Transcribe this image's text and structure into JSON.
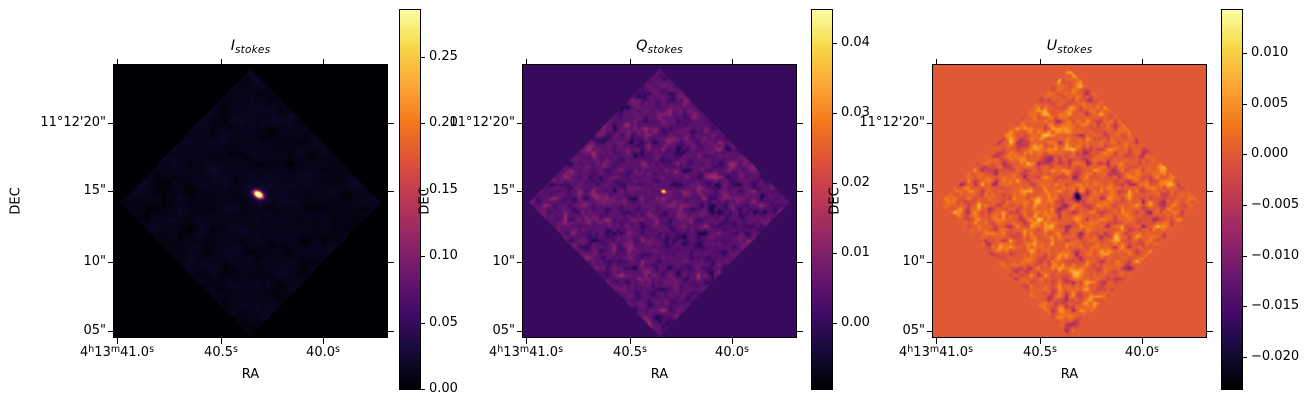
{
  "figure": {
    "background": "#ffffff",
    "kind": "stokes-parameter-maps"
  },
  "colormap": {
    "name": "inferno",
    "stops": [
      "#000004",
      "#160b39",
      "#420a68",
      "#6a176e",
      "#932667",
      "#bc3754",
      "#dd513a",
      "#f3771a",
      "#fca636",
      "#f6d746",
      "#fcffa4"
    ]
  },
  "axes_shared": {
    "xlabel": "RA",
    "ylabel": "DEC",
    "yticks": [
      {
        "label": "11°12'20\"",
        "offset": 58
      },
      {
        "label": "15\"",
        "offset": 125.5
      },
      {
        "label": "10\"",
        "offset": 197
      },
      {
        "label": "05\"",
        "offset": 266
      }
    ],
    "xticks": [
      {
        "offset": 3,
        "parts": [
          {
            "t": "4",
            "sup": false
          },
          {
            "t": "h",
            "sup": true
          },
          {
            "t": "13",
            "sup": false
          },
          {
            "t": "m",
            "sup": true
          },
          {
            "t": "41.0",
            "sup": false
          },
          {
            "t": "s",
            "sup": true
          }
        ]
      },
      {
        "offset": 107,
        "parts": [
          {
            "t": "40.5",
            "sup": false
          },
          {
            "t": "s",
            "sup": true
          }
        ]
      },
      {
        "offset": 209,
        "parts": [
          {
            "t": "40.0",
            "sup": false
          },
          {
            "t": "s",
            "sup": true
          }
        ]
      }
    ],
    "x_tick_labels_plain": [
      "4h13m41.0s",
      "40.5s",
      "40.0s"
    ],
    "y_tick_labels_plain": [
      "11°12'20\"",
      "15\"",
      "10\"",
      "05\""
    ]
  },
  "chart_data": [
    {
      "type": "heatmap",
      "title": "I_stokes",
      "title_main": "I",
      "title_sub": "stokes",
      "xlabel": "RA",
      "ylabel": "DEC",
      "colorbar": {
        "tick_labels": [
          "0.25",
          "0.20",
          "0.15",
          "0.10",
          "0.05",
          "0.00"
        ],
        "tick_values": [
          0.25,
          0.2,
          0.15,
          0.1,
          0.05,
          0.0
        ],
        "vmin": 0.0,
        "vmax": 0.285
      },
      "image": {
        "description": "dark field, faint diamond-shaped survey footprint, single compact bright point source at center",
        "background_value": 0.0,
        "noise_base": 0.04,
        "noise_amp": 0.05,
        "scale1": 11,
        "scale2": 5.5,
        "seed": 11,
        "spots": [
          {
            "x": 144,
            "y": 129,
            "sx": 3.2,
            "sy": 2.0,
            "angle": -32,
            "amp": 1.6
          },
          {
            "x": 144,
            "y": 129,
            "sx": 8.0,
            "sy": 6.0,
            "angle": -32,
            "amp": 0.08
          }
        ]
      }
    },
    {
      "type": "heatmap",
      "title": "Q_stokes",
      "title_main": "Q",
      "title_sub": "stokes",
      "xlabel": "RA",
      "ylabel": "DEC",
      "colorbar": {
        "tick_labels": [
          "0.04",
          "0.03",
          "0.02",
          "0.01",
          "0.00"
        ],
        "tick_values": [
          0.04,
          0.03,
          0.02,
          0.01,
          0.0
        ],
        "vmin": -0.0094,
        "vmax": 0.0447
      },
      "image": {
        "description": "violet noisy diamond-shaped footprint on dark violet background, tiny bright spot at center",
        "background_value": 0.174,
        "noise_base": 0.26,
        "noise_amp": 0.22,
        "scale1": 7,
        "scale2": 3.5,
        "seed": 22,
        "spots": [
          {
            "x": 140,
            "y": 126,
            "sx": 1.7,
            "sy": 1.2,
            "angle": -20,
            "amp": 0.85
          }
        ]
      }
    },
    {
      "type": "heatmap",
      "title": "U_stokes",
      "title_main": "U",
      "title_sub": "stokes",
      "xlabel": "RA",
      "ylabel": "DEC",
      "colorbar": {
        "tick_labels": [
          "0.010",
          "0.005",
          "0.000",
          "−0.005",
          "−0.010",
          "−0.015",
          "−0.020"
        ],
        "tick_values": [
          0.01,
          0.005,
          0.0,
          -0.005,
          -0.01,
          -0.015,
          -0.02
        ],
        "vmin": -0.02316,
        "vmax": 0.01424
      },
      "image": {
        "description": "orange noisy diamond-shaped footprint on flat orange background, small dark spot at center",
        "background_value": 0.619,
        "noise_base": 0.63,
        "noise_amp": 0.3,
        "scale1": 7,
        "scale2": 3.5,
        "seed": 33,
        "spots": [
          {
            "x": 144,
            "y": 131,
            "sx": 2.0,
            "sy": 3.2,
            "angle": 15,
            "amp": -0.62
          }
        ]
      }
    }
  ]
}
